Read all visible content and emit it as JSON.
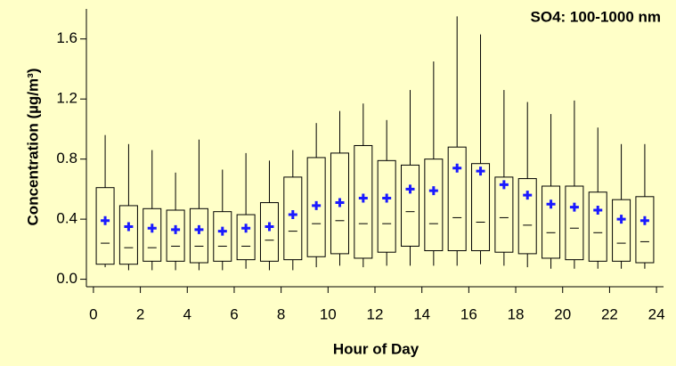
{
  "chart_data": {
    "type": "box",
    "annotation": "SO4: 100-1000 nm",
    "xlabel": "Hour of Day",
    "ylabel": "Concentration (µg/m³)",
    "x": [
      0.5,
      1.5,
      2.5,
      3.5,
      4.5,
      5.5,
      6.5,
      7.5,
      8.5,
      9.5,
      10.5,
      11.5,
      12.5,
      13.5,
      14.5,
      15.5,
      16.5,
      17.5,
      18.5,
      19.5,
      20.5,
      21.5,
      22.5,
      23.5
    ],
    "whisker_low": [
      0.08,
      0.06,
      0.06,
      0.06,
      0.06,
      0.06,
      0.07,
      0.06,
      0.06,
      0.08,
      0.09,
      0.08,
      0.09,
      0.09,
      0.09,
      0.09,
      0.1,
      0.09,
      0.08,
      0.07,
      0.07,
      0.07,
      0.07,
      0.07
    ],
    "q1": [
      0.1,
      0.1,
      0.12,
      0.12,
      0.11,
      0.12,
      0.13,
      0.12,
      0.13,
      0.15,
      0.17,
      0.14,
      0.18,
      0.22,
      0.19,
      0.19,
      0.19,
      0.18,
      0.17,
      0.14,
      0.13,
      0.12,
      0.12,
      0.11
    ],
    "median": [
      0.24,
      0.21,
      0.21,
      0.22,
      0.22,
      0.22,
      0.22,
      0.26,
      0.32,
      0.37,
      0.39,
      0.37,
      0.37,
      0.45,
      0.37,
      0.41,
      0.38,
      0.41,
      0.36,
      0.31,
      0.34,
      0.31,
      0.24,
      0.25
    ],
    "q3": [
      0.61,
      0.49,
      0.47,
      0.46,
      0.47,
      0.45,
      0.43,
      0.51,
      0.68,
      0.81,
      0.84,
      0.89,
      0.79,
      0.76,
      0.8,
      0.88,
      0.77,
      0.68,
      0.67,
      0.62,
      0.62,
      0.58,
      0.53,
      0.55
    ],
    "whisker_high": [
      0.96,
      0.9,
      0.86,
      0.71,
      0.93,
      0.73,
      0.84,
      0.79,
      0.86,
      1.04,
      1.12,
      1.17,
      1.06,
      1.26,
      1.45,
      1.75,
      1.63,
      1.26,
      1.18,
      1.1,
      1.19,
      1.01,
      0.9,
      0.9
    ],
    "mean": [
      0.39,
      0.35,
      0.34,
      0.33,
      0.33,
      0.32,
      0.34,
      0.35,
      0.43,
      0.49,
      0.51,
      0.54,
      0.54,
      0.6,
      0.59,
      0.74,
      0.72,
      0.63,
      0.56,
      0.5,
      0.48,
      0.46,
      0.4,
      0.39
    ],
    "mean_color": "#1a1aff",
    "box_color": "#000000",
    "background": "#ffffc8",
    "xlim": [
      -0.3,
      24.3
    ],
    "xticks": [
      0,
      2,
      4,
      6,
      8,
      10,
      12,
      14,
      16,
      18,
      20,
      22,
      24
    ],
    "ylim": [
      -0.05,
      1.8
    ],
    "yticks": [
      {
        "value": 0,
        "label": "0.0"
      },
      0.4,
      0.8,
      1.2,
      1.6
    ]
  }
}
